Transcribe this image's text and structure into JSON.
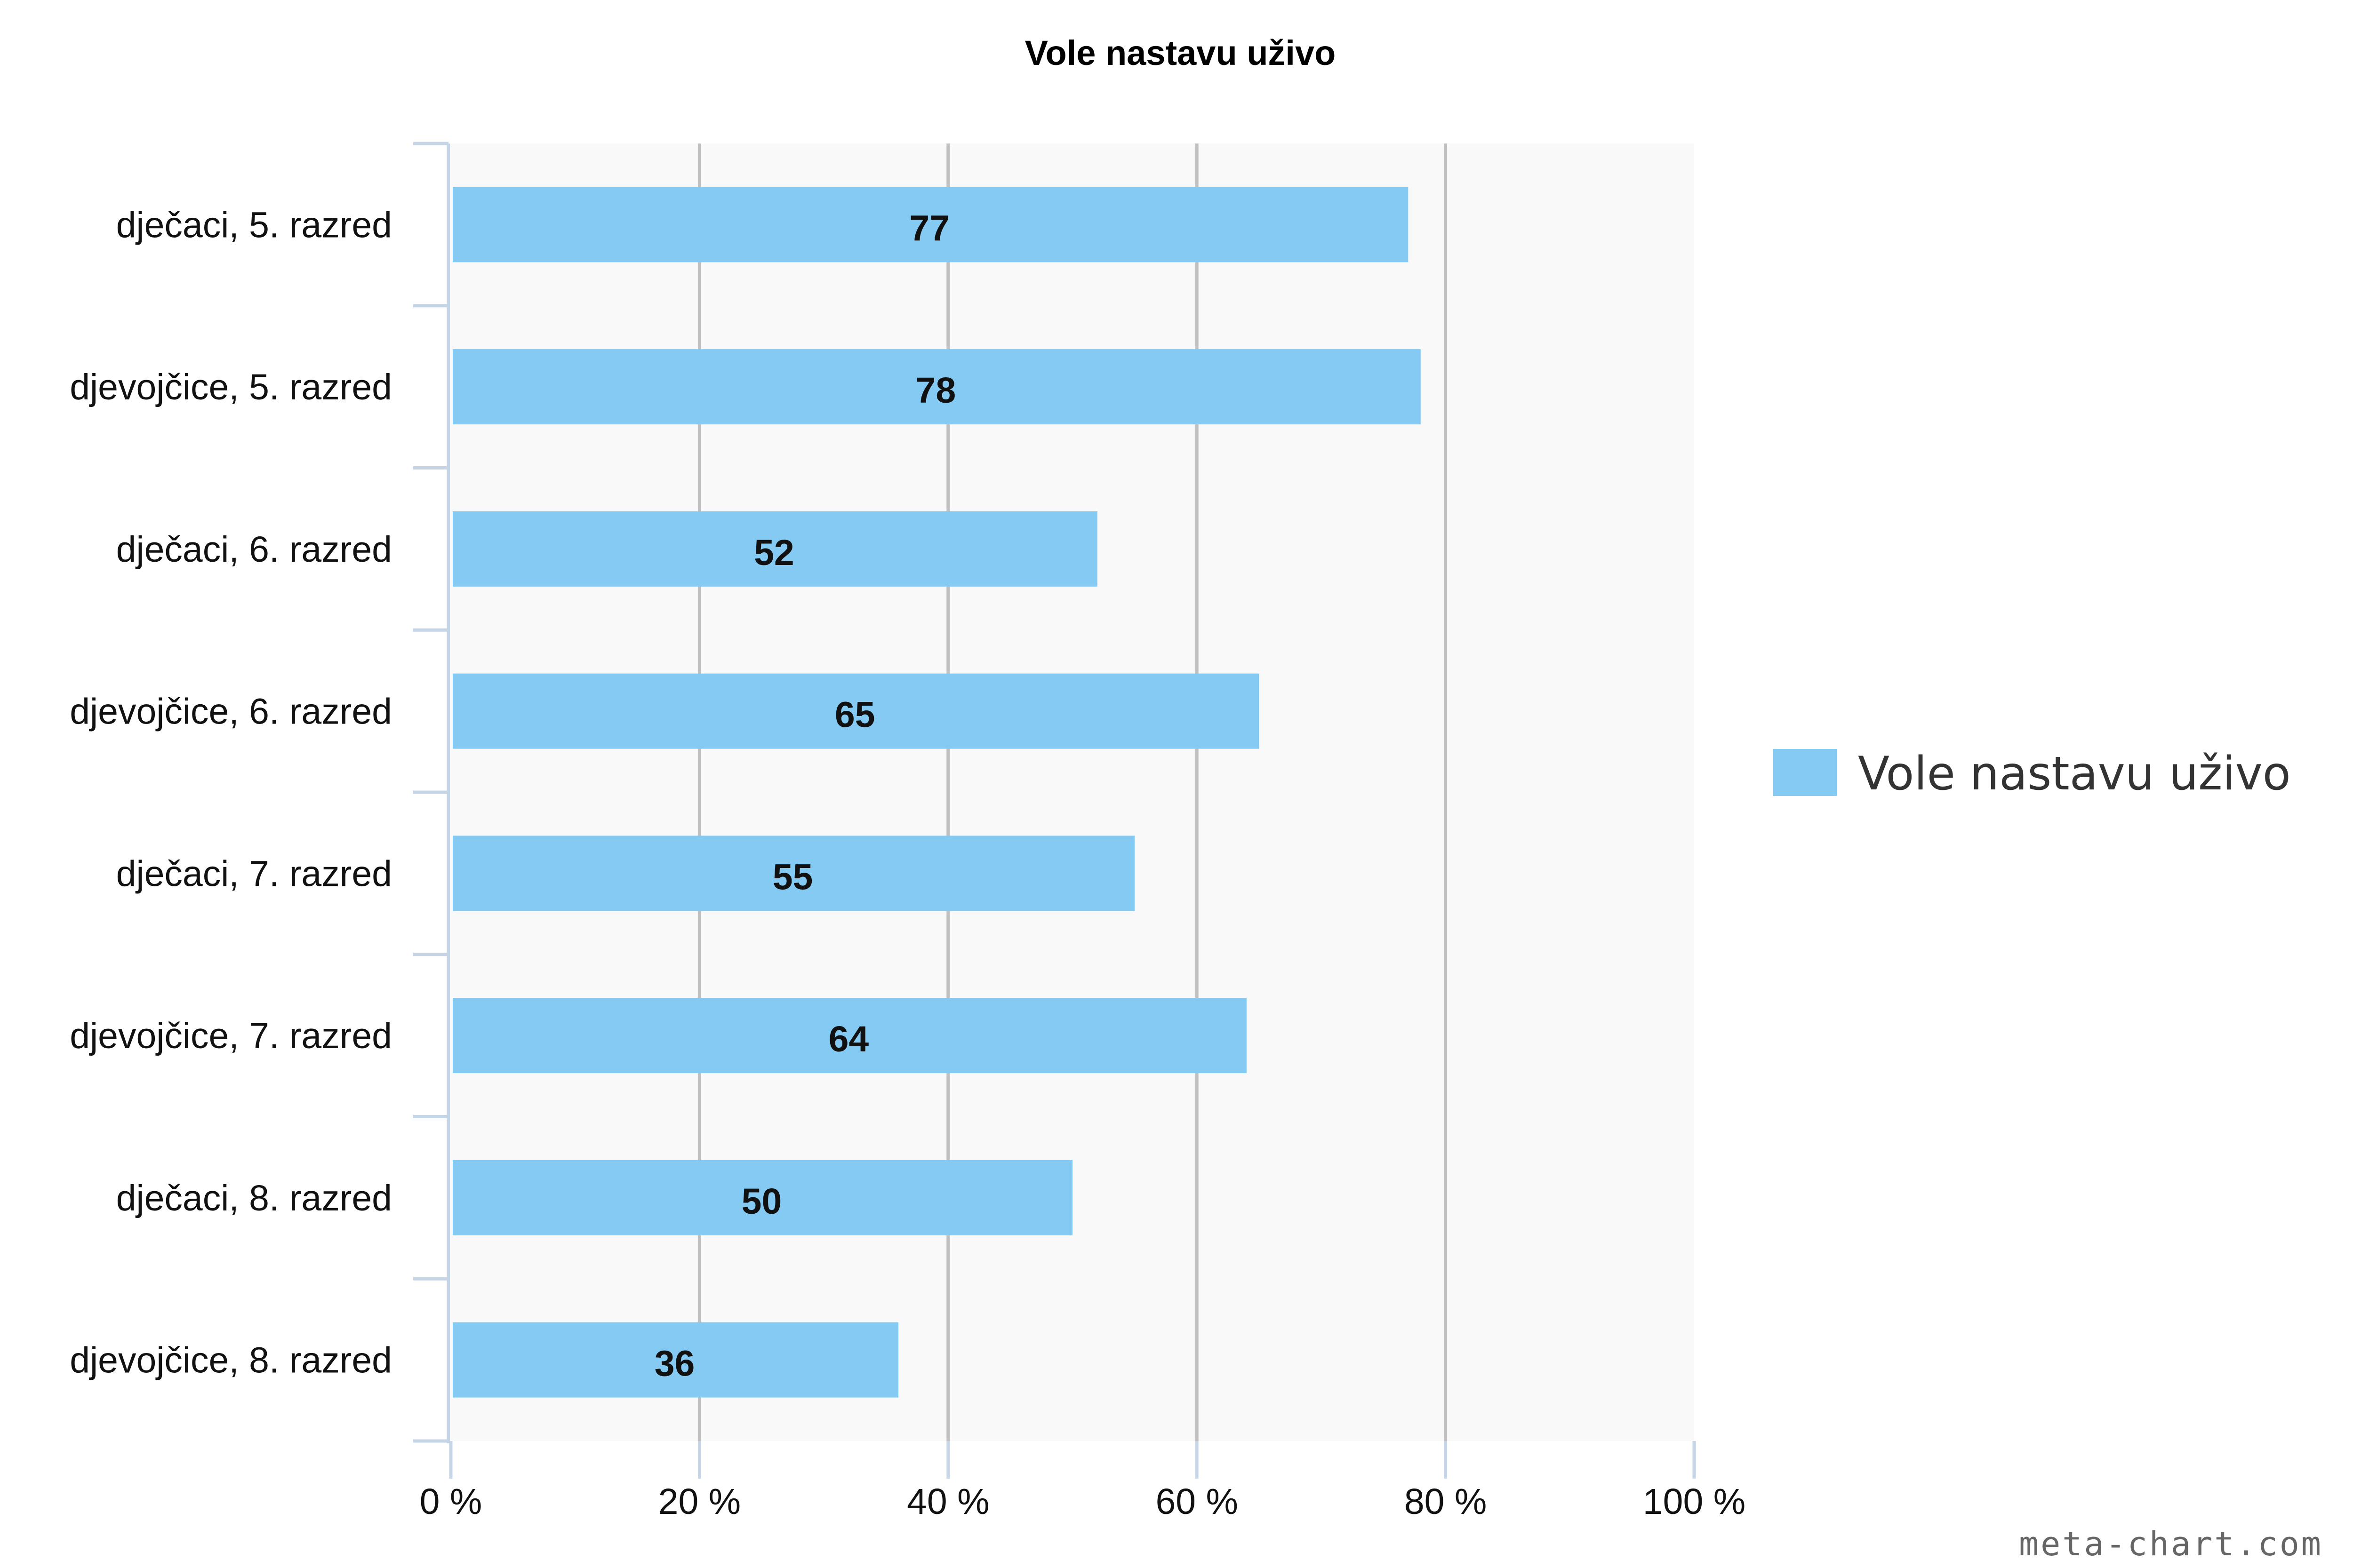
{
  "chart_data": {
    "type": "bar",
    "orientation": "horizontal",
    "title": "Vole nastavu uživo",
    "categories": [
      "dječaci, 5. razred",
      "djevojčice, 5. razred",
      "dječaci, 6. razred",
      "djevojčice, 6. razred",
      "dječaci, 7. razred",
      "djevojčice, 7. razred",
      "dječaci, 8. razred",
      "djevojčice, 8. razred"
    ],
    "series": [
      {
        "name": "Vole nastavu uživo",
        "values": [
          77,
          78,
          52,
          65,
          55,
          64,
          50,
          36
        ],
        "color": "#85caf2"
      }
    ],
    "value_labels": [
      "77",
      "78",
      "52",
      "65",
      "55",
      "64",
      "50",
      "36"
    ],
    "xlim": [
      0,
      100
    ],
    "x_ticks": [
      0,
      20,
      40,
      60,
      80,
      100
    ],
    "x_tick_labels": [
      "0 %",
      "20 %",
      "40 %",
      "60 %",
      "80 %",
      "100 %"
    ],
    "grid": true,
    "legend_position": "right",
    "plot_background": "#f9f9f9",
    "grid_color": "#c0c0c0",
    "axis_color": "#c6d5e6"
  },
  "watermark": "meta-chart.com"
}
